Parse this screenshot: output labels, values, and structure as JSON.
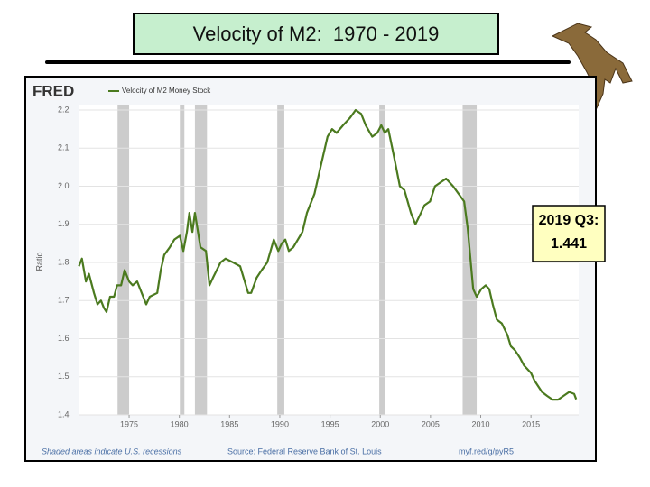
{
  "chart_data": {
    "type": "line",
    "title": "Velocity of M2:  1970 - 2019",
    "logo": "FRED",
    "y_label": "Ratio",
    "note": "Shaded areas indicate U.S. recessions",
    "source": "Source: Federal Reserve Bank of St. Louis",
    "link": "myf.red/g/pyR5",
    "annotation_lines": [
      "2019 Q3:",
      "1.441"
    ],
    "x": [
      1970.0,
      1970.3,
      1970.7,
      1971.0,
      1971.5,
      1971.85,
      1972.2,
      1972.5,
      1972.75,
      1973.1,
      1973.5,
      1973.8,
      1974.2,
      1974.55,
      1975.0,
      1975.35,
      1975.8,
      1976.25,
      1976.7,
      1977.05,
      1977.8,
      1978.15,
      1978.5,
      1979.05,
      1979.5,
      1980.05,
      1980.4,
      1980.75,
      1981.0,
      1981.3,
      1981.55,
      1982.1,
      1982.65,
      1983.0,
      1983.35,
      1984.1,
      1984.6,
      1985.35,
      1986.05,
      1986.85,
      1987.15,
      1987.7,
      1988.2,
      1988.75,
      1989.4,
      1989.85,
      1990.2,
      1990.55,
      1990.9,
      1991.35,
      1992.25,
      1992.7,
      1993.45,
      1994.05,
      1994.75,
      1995.2,
      1995.65,
      1996.3,
      1997.0,
      1997.55,
      1998.1,
      1998.55,
      1999.2,
      1999.7,
      2000.1,
      2000.45,
      2000.8,
      2001.35,
      2001.95,
      2002.4,
      2003.05,
      2003.5,
      2004.05,
      2004.4,
      2004.95,
      2005.45,
      2006.0,
      2006.55,
      2007.25,
      2007.8,
      2008.35,
      2008.7,
      2009.25,
      2009.6,
      2010.05,
      2010.5,
      2010.85,
      2011.2,
      2011.6,
      2012.1,
      2012.65,
      2013.0,
      2013.4,
      2013.9,
      2014.3,
      2015.0,
      2015.35,
      2016.1,
      2016.6,
      2017.15,
      2017.7,
      2018.25,
      2018.8,
      2019.3,
      2019.5
    ],
    "series": [
      {
        "name": "Velocity of M2 Money Stock",
        "color": "#4b7a1f",
        "values": [
          1.79,
          1.81,
          1.75,
          1.77,
          1.72,
          1.69,
          1.7,
          1.68,
          1.67,
          1.71,
          1.71,
          1.74,
          1.74,
          1.78,
          1.75,
          1.74,
          1.75,
          1.72,
          1.69,
          1.71,
          1.72,
          1.78,
          1.82,
          1.84,
          1.86,
          1.87,
          1.83,
          1.88,
          1.93,
          1.88,
          1.93,
          1.84,
          1.83,
          1.74,
          1.76,
          1.8,
          1.81,
          1.8,
          1.79,
          1.72,
          1.72,
          1.76,
          1.78,
          1.8,
          1.86,
          1.83,
          1.85,
          1.86,
          1.83,
          1.84,
          1.88,
          1.93,
          1.98,
          2.05,
          2.13,
          2.15,
          2.14,
          2.16,
          2.18,
          2.2,
          2.19,
          2.16,
          2.13,
          2.14,
          2.16,
          2.14,
          2.15,
          2.08,
          2.0,
          1.99,
          1.93,
          1.9,
          1.93,
          1.95,
          1.96,
          2.0,
          2.01,
          2.02,
          2.0,
          1.98,
          1.96,
          1.89,
          1.73,
          1.71,
          1.73,
          1.74,
          1.73,
          1.69,
          1.65,
          1.64,
          1.61,
          1.58,
          1.57,
          1.55,
          1.53,
          1.51,
          1.49,
          1.46,
          1.45,
          1.44,
          1.44,
          1.45,
          1.46,
          1.455,
          1.441
        ]
      }
    ],
    "recessions": [
      [
        1973.85,
        1975.0
      ],
      [
        1980.05,
        1980.5
      ],
      [
        1981.55,
        1982.75
      ],
      [
        1989.75,
        1990.45
      ],
      [
        1999.9,
        2000.5
      ],
      [
        2008.2,
        2009.6
      ]
    ],
    "recession_color": "#cccccc",
    "xlim": [
      1970,
      2019.75
    ],
    "xticks": [
      1975,
      1980,
      1985,
      1990,
      1995,
      2000,
      2005,
      2010,
      2015
    ],
    "ylim": [
      1.4,
      2.2
    ],
    "yticks": [
      1.4,
      1.5,
      1.6,
      1.7,
      1.8,
      1.9,
      {
        "value": 2,
        "label": "2.0"
      },
      2.1,
      2.2
    ],
    "grid": true
  }
}
